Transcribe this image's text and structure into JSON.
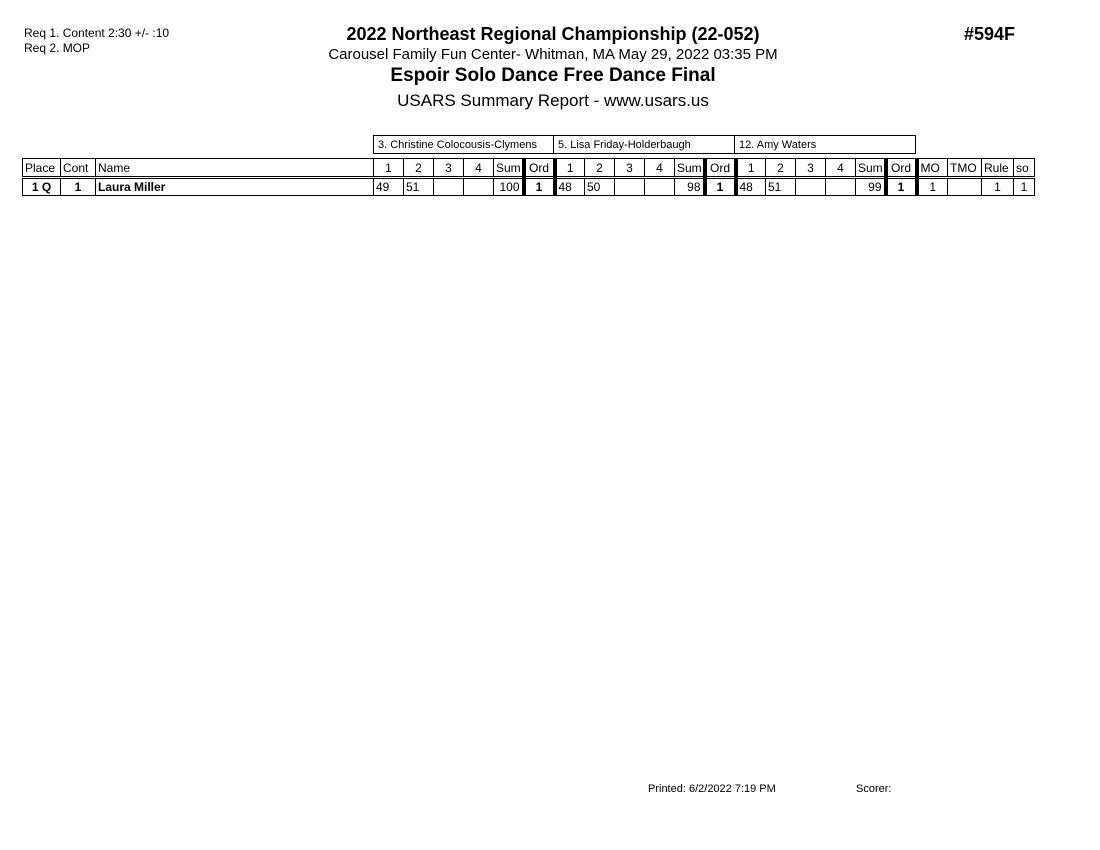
{
  "requirements": [
    "Req 1.  Content 2:30 +/- :10",
    "Req 2.  MOP"
  ],
  "header": {
    "title": "2022 Northeast Regional Championship (22-052)",
    "venue": "Carousel Family Fun Center- Whitman, MA  May 29, 2022  03:35 PM",
    "event": "Espoir Solo Dance Free Dance Final",
    "report": "USARS Summary Report - www.usars.us",
    "number": "#594F"
  },
  "judges": [
    "3. Christine Colocousis-Clymens",
    "5.  Lisa Friday-Holderbaugh",
    "12.  Amy Waters"
  ],
  "columns": {
    "place": "Place",
    "cont": "Cont",
    "name": "Name",
    "judge_cols": [
      "1",
      "2",
      "3",
      "4",
      "Sum",
      "Ord"
    ],
    "mo": "MO",
    "tmo": "TMO",
    "rule": "Rule",
    "so": "so"
  },
  "rows": [
    {
      "place": "1 Q",
      "cont": "1",
      "name": "Laura Miller",
      "judges": [
        [
          "49",
          "51",
          "",
          "",
          "100",
          "1"
        ],
        [
          "48",
          "50",
          "",
          "",
          "98",
          "1"
        ],
        [
          "48",
          "51",
          "",
          "",
          "99",
          "1"
        ]
      ],
      "mo": "1",
      "tmo": "",
      "rule": "1",
      "so": "1"
    }
  ],
  "footer": {
    "printed": "Printed:  6/2/2022  7:19 PM",
    "scorer": "Scorer:"
  }
}
